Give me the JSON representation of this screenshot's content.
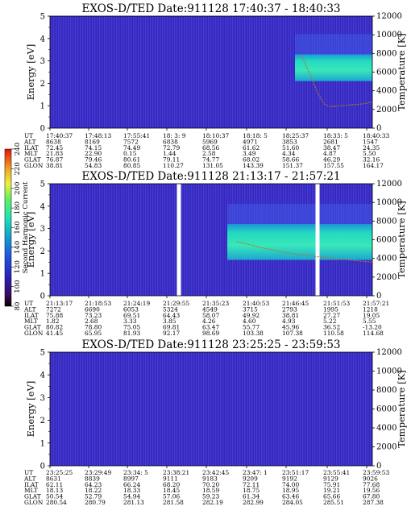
{
  "chart_data": [
    {
      "type": "heatmap",
      "title": "EXOS-D/TED   Date:911128  17:40:37 - 18:40:33",
      "ylabel": "Energy [eV]",
      "ylim": [
        0,
        5
      ],
      "yticks": [
        "0",
        "1",
        "2",
        "3",
        "4",
        "5"
      ],
      "y2label": "Temperature [K]",
      "y2lim": [
        0,
        12000
      ],
      "y2ticks": [
        "0",
        "2000",
        "4000",
        "6000",
        "8000",
        "10000",
        "12000"
      ],
      "table_labels": [
        "UT",
        "ALT",
        "ILAT",
        "MLT",
        "GLAT",
        "GLON"
      ],
      "table": [
        [
          "17:40:37",
          "17:48:13",
          "17:55:41",
          "18: 3: 9",
          "18:10:37",
          "18:18: 5",
          "18:25:37",
          "18:33: 5",
          "18:40:33"
        ],
        [
          "8638",
          "8169",
          "7572",
          "6838",
          "5969",
          "4971",
          "3853",
          "2681",
          "1547"
        ],
        [
          "72.45",
          "74.15",
          "74.49",
          "72.79",
          "68.56",
          "61.62",
          "51.60",
          "38.47",
          "24.35"
        ],
        [
          "21.83",
          "22.90",
          "0.15",
          "1.44",
          "2.58",
          "3.49",
          "4.34",
          "4.87",
          "5.50"
        ],
        [
          "76.87",
          "79.46",
          "80.61",
          "79.11",
          "74.77",
          "68.02",
          "58.66",
          "46.29",
          "32.16"
        ],
        [
          "38.81",
          "54.83",
          "80.85",
          "110.27",
          "131.05",
          "143.39",
          "151.37",
          "157.55",
          "164.17"
        ]
      ],
      "temperature_curve": {
        "x_frac": [
          0.78,
          0.81,
          0.83,
          0.85,
          0.87,
          0.9,
          0.94,
          0.97,
          1.0
        ],
        "kelvin": [
          7800,
          5500,
          3800,
          2600,
          2300,
          2400,
          2500,
          2600,
          2800
        ]
      },
      "bright_band": {
        "x_from": 0.76,
        "x_to": 1.0,
        "energy_from": 2.1,
        "energy_to": 3.3
      }
    },
    {
      "type": "heatmap",
      "title": "EXOS-D/TED   Date:911128  21:13:17 - 21:57:21",
      "ylabel": "Energy [eV]",
      "ylim": [
        0,
        5
      ],
      "yticks": [
        "0",
        "1",
        "2",
        "3",
        "4",
        "5"
      ],
      "y2label": "Temperature [K]",
      "y2lim": [
        0,
        12000
      ],
      "y2ticks": [
        "0",
        "2000",
        "4000",
        "6000",
        "8000",
        "10000",
        "12000"
      ],
      "table_labels": [
        "UT",
        "ALT",
        "ILAT",
        "MLT",
        "GLAT",
        "GLON"
      ],
      "table": [
        [
          "21:13:17",
          "21:18:53",
          "21:24:19",
          "21:29:55",
          "21:35:23",
          "21:40:53",
          "21:46:45",
          "21:51:53",
          "21:57:21"
        ],
        [
          "7272",
          "6690",
          "6053",
          "5324",
          "4549",
          "3715",
          "2793",
          "1995",
          "1218"
        ],
        [
          "75.88",
          "73.23",
          "69.51",
          "64.43",
          "58.07",
          "49.92",
          "38.81",
          "27.27",
          "19.05"
        ],
        [
          "1.82",
          "2.68",
          "3.33",
          "3.85",
          "4.26",
          "4.60",
          "4.93",
          "5.22",
          "5.55"
        ],
        [
          "80.82",
          "78.80",
          "75.05",
          "69.81",
          "63.47",
          "55.77",
          "45.96",
          "36.52",
          "-13.20"
        ],
        [
          "41.45",
          "65.95",
          "81.93",
          "92.17",
          "98.69",
          "103.38",
          "107.38",
          "110.58",
          "114.68"
        ]
      ],
      "temperature_curve": {
        "x_frac": [
          0.58,
          0.65,
          0.72,
          0.8,
          0.88,
          0.94,
          1.0
        ],
        "kelvin": [
          5800,
          5200,
          4700,
          4300,
          4000,
          3800,
          3600
        ]
      },
      "bright_band": {
        "x_from": 0.55,
        "x_to": 1.0,
        "energy_from": 1.6,
        "energy_to": 3.2
      },
      "gaps_x_frac": [
        0.4,
        0.83
      ]
    },
    {
      "type": "heatmap",
      "title": "EXOS-D/TED   Date:911128  23:25:25 - 23:59:53",
      "ylabel": "Energy [eV]",
      "ylim": [
        0,
        5
      ],
      "yticks": [
        "0",
        "1",
        "2",
        "3",
        "4",
        "5"
      ],
      "y2label": "Temperature [K]",
      "y2lim": [
        0,
        12000
      ],
      "y2ticks": [
        "0",
        "2000",
        "4000",
        "6000",
        "8000",
        "10000",
        "12000"
      ],
      "table_labels": [
        "UT",
        "ALT",
        "ILAT",
        "MLT",
        "GLAT",
        "GLON"
      ],
      "table": [
        [
          "23:25:25",
          "23:29:49",
          "23:34: 5",
          "23:38:21",
          "23:42:45",
          "23:47: 1",
          "23:51:17",
          "23:55:41",
          "23:59:53"
        ],
        [
          "8631",
          "8839",
          "8997",
          "9111",
          "9183",
          "9209",
          "9192",
          "9129",
          "9026"
        ],
        [
          "62.11",
          "64.23",
          "66.24",
          "68.20",
          "70.20",
          "72.11",
          "74.00",
          "75.91",
          "77.68"
        ],
        [
          "18.13",
          "18.22",
          "18.33",
          "18.45",
          "18.59",
          "18.75",
          "18.95",
          "19.21",
          "19.56"
        ],
        [
          "50.54",
          "52.79",
          "54.94",
          "57.06",
          "59.23",
          "61.34",
          "63.46",
          "65.66",
          "67.80"
        ],
        [
          "280.54",
          "280.79",
          "281.13",
          "281.58",
          "282.19",
          "282.99",
          "284.05",
          "285.51",
          "287.38"
        ]
      ]
    }
  ],
  "colorbar": {
    "label": "Second Harmonic Current",
    "ticks": [
      "80",
      "100",
      "120",
      "140",
      "160",
      "180",
      "200",
      "220",
      "240"
    ],
    "range": [
      80,
      240
    ]
  },
  "colors": {
    "low": "#3a2fc8",
    "mid": "#0aa9c8",
    "high": "#2ef3b8",
    "curve": "#b07828",
    "peak": "#f5e24a"
  }
}
